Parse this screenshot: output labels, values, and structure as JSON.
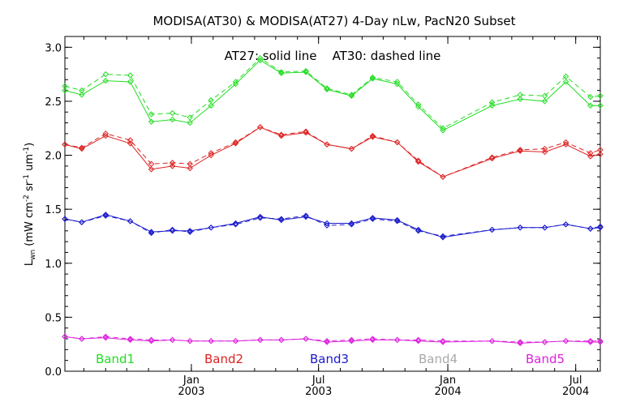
{
  "chart_data": {
    "type": "line",
    "title": "MODISA(AT30) & MODISA(AT27) 4-Day nLw, PacN20 Subset",
    "annotation": "AT27: solid line    AT30: dashed line",
    "ylabel": "L_wn (mW cm^-2 sr^-1 um^-1)",
    "ylabel_parts": {
      "main": "L",
      "sub": "wn",
      "unit_open": " (mW cm",
      "exp1": "-2",
      "mid1": " sr",
      "exp2": "-1",
      "mid2": " um",
      "exp3": "-1",
      "unit_close": ")"
    },
    "ylim": [
      0.0,
      3.1
    ],
    "yticks": [
      "0.0",
      "0.5",
      "1.0",
      "1.5",
      "2.0",
      "2.5",
      "3.0"
    ],
    "xlim": [
      "2002-07-05",
      "2004-08-05"
    ],
    "xticks": [
      {
        "date": "2003-01-01",
        "month": "Jan",
        "year": "2003"
      },
      {
        "date": "2003-07-01",
        "month": "Jul",
        "year": "2003"
      },
      {
        "date": "2004-01-01",
        "month": "Jan",
        "year": "2004"
      },
      {
        "date": "2004-07-01",
        "month": "Jul",
        "year": "2004"
      }
    ],
    "line_styles": {
      "AT27": "solid",
      "AT30": "dashed"
    },
    "x": [
      "2002-07-05",
      "2002-07-29",
      "2002-09-01",
      "2002-10-06",
      "2002-11-05",
      "2002-12-05",
      "2002-12-30",
      "2003-01-29",
      "2003-03-05",
      "2003-04-09",
      "2003-05-09",
      "2003-06-13",
      "2003-07-13",
      "2003-08-17",
      "2003-09-16",
      "2003-10-21",
      "2003-11-20",
      "2003-12-25",
      "2004-03-04",
      "2004-04-13",
      "2004-05-18",
      "2004-06-17",
      "2004-07-22",
      "2004-08-05"
    ],
    "series": [
      {
        "name": "Band1",
        "color": "#22dd22",
        "AT27": [
          2.6,
          2.56,
          2.69,
          2.68,
          2.31,
          2.33,
          2.3,
          2.46,
          2.66,
          2.88,
          2.76,
          2.77,
          2.61,
          2.55,
          2.71,
          2.66,
          2.45,
          2.23,
          2.46,
          2.52,
          2.5,
          2.68,
          2.46,
          2.46
        ],
        "AT30": [
          2.64,
          2.6,
          2.75,
          2.74,
          2.38,
          2.39,
          2.35,
          2.51,
          2.68,
          2.9,
          2.77,
          2.78,
          2.62,
          2.56,
          2.72,
          2.68,
          2.47,
          2.25,
          2.49,
          2.56,
          2.55,
          2.73,
          2.54,
          2.55
        ]
      },
      {
        "name": "Band2",
        "color": "#dd2222",
        "AT27": [
          2.1,
          2.06,
          2.18,
          2.11,
          1.87,
          1.9,
          1.88,
          2.0,
          2.11,
          2.26,
          2.18,
          2.21,
          2.1,
          2.06,
          2.17,
          2.12,
          1.94,
          1.8,
          1.97,
          2.04,
          2.03,
          2.1,
          1.99,
          2.01
        ],
        "AT30": [
          2.1,
          2.07,
          2.2,
          2.14,
          1.92,
          1.93,
          1.92,
          2.02,
          2.12,
          2.26,
          2.19,
          2.22,
          2.1,
          2.06,
          2.18,
          2.12,
          1.95,
          1.8,
          1.98,
          2.05,
          2.06,
          2.12,
          2.02,
          2.05
        ]
      },
      {
        "name": "Band3",
        "color": "#1a1acc",
        "AT27": [
          1.41,
          1.38,
          1.45,
          1.39,
          1.29,
          1.3,
          1.3,
          1.33,
          1.37,
          1.43,
          1.4,
          1.43,
          1.37,
          1.37,
          1.42,
          1.4,
          1.31,
          1.24,
          1.31,
          1.33,
          1.33,
          1.36,
          1.32,
          1.33
        ],
        "AT30": [
          1.41,
          1.38,
          1.44,
          1.39,
          1.28,
          1.31,
          1.29,
          1.33,
          1.36,
          1.42,
          1.41,
          1.44,
          1.35,
          1.36,
          1.41,
          1.39,
          1.3,
          1.25,
          1.31,
          1.33,
          1.33,
          1.36,
          1.32,
          1.34
        ]
      },
      {
        "name": "Band4",
        "color": "#aaaaaa",
        "AT27": [],
        "AT30": []
      },
      {
        "name": "Band5",
        "color": "#dd22dd",
        "AT27": [
          0.32,
          0.3,
          0.31,
          0.29,
          0.28,
          0.29,
          0.28,
          0.28,
          0.28,
          0.29,
          0.29,
          0.3,
          0.27,
          0.28,
          0.29,
          0.29,
          0.28,
          0.27,
          0.28,
          0.26,
          0.27,
          0.28,
          0.27,
          0.27
        ],
        "AT30": [
          0.32,
          0.3,
          0.32,
          0.3,
          0.29,
          0.29,
          0.28,
          0.28,
          0.28,
          0.29,
          0.29,
          0.3,
          0.28,
          0.29,
          0.3,
          0.29,
          0.29,
          0.28,
          0.28,
          0.27,
          0.27,
          0.28,
          0.28,
          0.28
        ]
      }
    ]
  }
}
